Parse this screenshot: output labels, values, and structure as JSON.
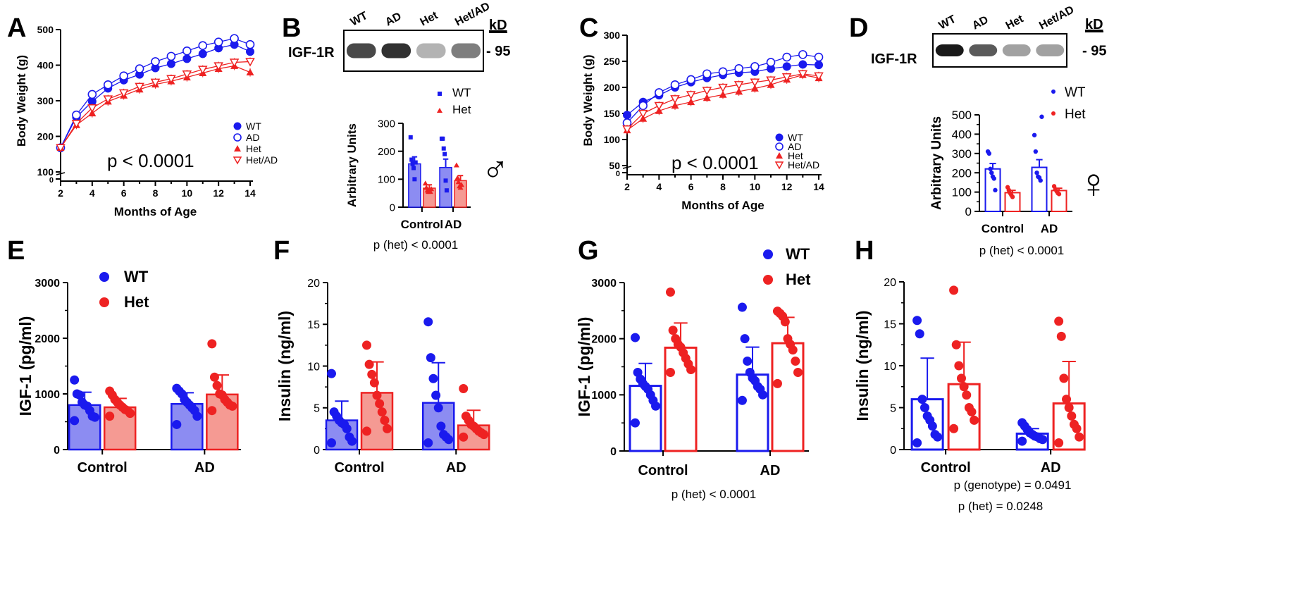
{
  "colors": {
    "wt": "#1a1aee",
    "het": "#ee2222",
    "wt_fill": "#8c8cf2",
    "het_fill": "#f59a93",
    "axis": "#000000"
  },
  "chart_data": [
    {
      "panel": "A",
      "type": "line",
      "xlabel": "Months of Age",
      "ylabel": "Body Weight (g)",
      "xlim": [
        2,
        14
      ],
      "xticks": [
        2,
        4,
        6,
        8,
        10,
        12,
        14
      ],
      "yticks": [
        100,
        200,
        300,
        400,
        500
      ],
      "extra_tick": "0",
      "ylim": [
        100,
        500
      ],
      "annotation": "p < 0.0001",
      "x": [
        2,
        3,
        4,
        5,
        6,
        7,
        8,
        9,
        10,
        11,
        12,
        13,
        14
      ],
      "series": [
        {
          "name": "WT",
          "marker": "filled-circle",
          "color": "#1a1aee",
          "values": [
            168,
            254,
            298,
            335,
            358,
            374,
            392,
            404,
            418,
            432,
            448,
            458,
            438
          ]
        },
        {
          "name": "AD",
          "marker": "open-circle",
          "color": "#1a1aee",
          "values": [
            168,
            260,
            318,
            345,
            370,
            390,
            410,
            425,
            440,
            455,
            465,
            475,
            458
          ]
        },
        {
          "name": "Het",
          "marker": "filled-triangle",
          "color": "#ee2222",
          "values": [
            168,
            232,
            265,
            298,
            315,
            332,
            346,
            355,
            366,
            378,
            390,
            398,
            380
          ]
        },
        {
          "name": "Het/AD",
          "marker": "open-triangle-down",
          "color": "#ee2222",
          "values": [
            168,
            236,
            280,
            305,
            322,
            340,
            352,
            362,
            375,
            388,
            398,
            408,
            410
          ]
        }
      ]
    },
    {
      "panel": "B",
      "type": "bar",
      "blot": {
        "protein": "IGF-1R",
        "lanes": [
          "WT",
          "AD",
          "Het",
          "Het/AD"
        ],
        "kd_label": "kD",
        "kd_value": "- 95"
      },
      "ylabel": "Arbitrary Units",
      "yticks": [
        0,
        100,
        200,
        300
      ],
      "ylim": [
        0,
        300
      ],
      "categories": [
        "Control",
        "AD"
      ],
      "legend": [
        "WT",
        "Het"
      ],
      "symbol": "♂",
      "series": [
        {
          "name": "WT",
          "values": [
            155,
            142
          ],
          "sem": [
            25,
            30
          ],
          "points": [
            [
              250,
              170,
              155,
              140,
              100,
              160
            ],
            [
              245,
              245,
              210,
              190,
              95,
              60
            ]
          ]
        },
        {
          "name": "Het",
          "values": [
            68,
            95
          ],
          "sem": [
            12,
            18
          ],
          "points": [
            [
              85,
              70,
              60,
              55,
              60,
              55,
              65
            ],
            [
              150,
              105,
              90,
              75,
              70,
              80
            ]
          ]
        }
      ],
      "annotation": "p (het) < 0.0001"
    },
    {
      "panel": "C",
      "type": "line",
      "xlabel": "Months of Age",
      "ylabel": "Body Weight (g)",
      "xlim": [
        2,
        14
      ],
      "xticks": [
        2,
        4,
        6,
        8,
        10,
        12,
        14
      ],
      "yticks": [
        50,
        100,
        150,
        200,
        250,
        300
      ],
      "extra_tick": "0",
      "ylim": [
        50,
        300
      ],
      "annotation": "p < 0.0001",
      "x": [
        2,
        3,
        4,
        5,
        6,
        7,
        8,
        9,
        10,
        11,
        12,
        13,
        14
      ],
      "series": [
        {
          "name": "WT",
          "marker": "filled-circle",
          "color": "#1a1aee",
          "values": [
            147,
            172,
            185,
            200,
            210,
            218,
            224,
            228,
            230,
            236,
            240,
            244,
            243
          ]
        },
        {
          "name": "AD",
          "marker": "open-circle",
          "color": "#1a1aee",
          "values": [
            132,
            165,
            190,
            205,
            215,
            226,
            230,
            236,
            240,
            248,
            258,
            263,
            258
          ]
        },
        {
          "name": "Het",
          "marker": "filled-triangle",
          "color": "#ee2222",
          "values": [
            118,
            140,
            155,
            165,
            172,
            180,
            186,
            192,
            198,
            205,
            215,
            224,
            218
          ]
        },
        {
          "name": "Het/AD",
          "marker": "open-triangle-down",
          "color": "#ee2222",
          "values": [
            120,
            150,
            165,
            178,
            186,
            194,
            200,
            205,
            210,
            214,
            220,
            226,
            222
          ]
        }
      ]
    },
    {
      "panel": "D",
      "type": "bar",
      "blot": {
        "protein": "IGF-1R",
        "lanes": [
          "WT",
          "AD",
          "Het",
          "Het/AD"
        ],
        "kd_label": "kD",
        "kd_value": "- 95"
      },
      "ylabel": "Arbitrary Units",
      "yticks": [
        0,
        100,
        200,
        300,
        400,
        500
      ],
      "ylim": [
        0,
        500
      ],
      "categories": [
        "Control",
        "AD"
      ],
      "legend": [
        "WT",
        "Het"
      ],
      "symbol": "♀",
      "series": [
        {
          "name": "WT",
          "values": [
            220,
            228
          ],
          "sem": [
            28,
            40
          ],
          "points": [
            [
              310,
              300,
              220,
              200,
              180,
              170,
              110
            ],
            [
              395,
              310,
              200,
              180,
              175,
              160,
              490
            ]
          ]
        },
        {
          "name": "Het",
          "values": [
            97,
            108
          ],
          "sem": [
            12,
            12
          ],
          "points": [
            [
              125,
              110,
              95,
              85,
              75
            ],
            [
              130,
              115,
              105,
              95,
              90
            ]
          ]
        }
      ],
      "annotation": "p (het) < 0.0001"
    },
    {
      "panel": "E",
      "type": "bar",
      "ylabel": "IGF-1 (pg/ml)",
      "yticks": [
        0,
        1000,
        2000,
        3000
      ],
      "ylim": [
        0,
        3000
      ],
      "categories": [
        "Control",
        "AD"
      ],
      "legend": [
        "WT",
        "Het"
      ],
      "series": [
        {
          "name": "WT",
          "values": [
            800,
            820
          ],
          "sd": [
            230,
            200
          ],
          "points": [
            [
              1250,
              1000,
              980,
              850,
              800,
              780,
              700,
              600,
              580,
              520
            ],
            [
              1100,
              1050,
              1000,
              900,
              850,
              800,
              750,
              700,
              600,
              450
            ]
          ]
        },
        {
          "name": "Het",
          "values": [
            760,
            990
          ],
          "sd": [
            160,
            350
          ],
          "points": [
            [
              1050,
              980,
              900,
              850,
              800,
              760,
              720,
              700,
              650,
              600
            ],
            [
              1900,
              1300,
              1150,
              1000,
              980,
              900,
              850,
              800,
              780,
              700
            ]
          ]
        }
      ]
    },
    {
      "panel": "F",
      "type": "bar",
      "ylabel": "Insulin (ng/ml)",
      "yticks": [
        0,
        5,
        10,
        15,
        20
      ],
      "ylim": [
        0,
        20
      ],
      "categories": [
        "Control",
        "AD"
      ],
      "series": [
        {
          "name": "WT",
          "values": [
            3.5,
            5.6
          ],
          "sd": [
            2.3,
            4.8
          ],
          "points": [
            [
              9.1,
              4.5,
              4.0,
              3.5,
              3.2,
              3.0,
              2.5,
              1.5,
              1.0,
              0.8
            ],
            [
              15.3,
              11.0,
              8.5,
              6.5,
              5.0,
              2.8,
              1.8,
              1.5,
              1.2,
              0.8
            ]
          ]
        },
        {
          "name": "Het",
          "values": [
            6.8,
            2.9
          ],
          "sd": [
            3.7,
            1.8
          ],
          "points": [
            [
              12.5,
              10.2,
              9.0,
              8.0,
              6.5,
              5.5,
              4.5,
              3.5,
              2.5,
              2.2
            ],
            [
              7.3,
              4.0,
              3.5,
              3.0,
              2.8,
              2.5,
              2.2,
              2.0,
              1.8,
              1.5
            ]
          ]
        }
      ]
    },
    {
      "panel": "G",
      "type": "bar",
      "ylabel": "IGF-1 (pg/ml)",
      "yticks": [
        0,
        1000,
        2000,
        3000
      ],
      "ylim": [
        0,
        3000
      ],
      "categories": [
        "Control",
        "AD"
      ],
      "legend": [
        "WT",
        "Het"
      ],
      "series": [
        {
          "name": "WT",
          "values": [
            1160,
            1360
          ],
          "sd": [
            400,
            490
          ],
          "points": [
            [
              2020,
              1400,
              1280,
              1200,
              1150,
              1100,
              1000,
              900,
              800,
              500
            ],
            [
              2560,
              2000,
              1600,
              1400,
              1300,
              1250,
              1150,
              1100,
              1000,
              900
            ]
          ]
        },
        {
          "name": "Het",
          "values": [
            1840,
            1920
          ],
          "sd": [
            440,
            460
          ],
          "points": [
            [
              2830,
              2150,
              2000,
              1900,
              1850,
              1750,
              1650,
              1550,
              1450,
              1400
            ],
            [
              2490,
              2450,
              2400,
              2300,
              2000,
              1900,
              1800,
              1600,
              1400,
              1200
            ]
          ]
        }
      ],
      "annotation": "p (het) < 0.0001"
    },
    {
      "panel": "H",
      "type": "bar",
      "ylabel": "Insulin (ng/ml)",
      "yticks": [
        0,
        5,
        10,
        15,
        20
      ],
      "ylim": [
        0,
        20
      ],
      "categories": [
        "Control",
        "AD"
      ],
      "series": [
        {
          "name": "WT",
          "values": [
            6.0,
            1.9
          ],
          "sd": [
            4.9,
            0.6
          ],
          "points": [
            [
              15.4,
              13.8,
              6.0,
              5.0,
              4.0,
              3.5,
              2.8,
              1.8,
              1.5,
              0.8
            ],
            [
              3.2,
              2.8,
              2.4,
              2.0,
              1.8,
              1.6,
              1.5,
              1.3,
              1.2,
              1.0
            ]
          ]
        },
        {
          "name": "Het",
          "values": [
            7.8,
            5.5
          ],
          "sd": [
            5.0,
            5.0
          ],
          "points": [
            [
              19.0,
              12.5,
              10.0,
              8.5,
              7.5,
              6.5,
              5.0,
              4.5,
              3.5,
              2.5
            ],
            [
              15.3,
              13.5,
              8.5,
              6.0,
              5.0,
              4.0,
              3.0,
              2.5,
              1.5,
              0.8
            ]
          ]
        }
      ],
      "annotation": "p (genotype) = 0.0491",
      "annotation2": "p (het) = 0.0248"
    }
  ]
}
